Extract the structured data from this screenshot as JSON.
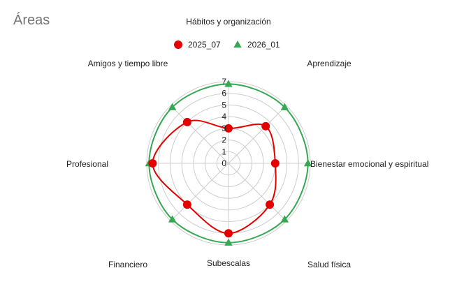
{
  "card": {
    "title": "Áreas"
  },
  "chart_data": {
    "type": "radar",
    "categories": [
      "Hábitos y organización",
      "Aprendizaje",
      "Bienestar emocional y espiritual",
      "Salud física",
      "Subescalas",
      "Financiero",
      "Profesional",
      "Amigos y tiempo libre"
    ],
    "series": [
      {
        "name": "2025_07",
        "values": [
          3,
          4.5,
          4,
          5,
          6,
          5,
          6.5,
          5
        ],
        "color": "#e50000",
        "marker": "circle"
      },
      {
        "name": "2026_01",
        "values": [
          6.8,
          6.8,
          6.8,
          6.8,
          6.8,
          6.8,
          6.8,
          6.8
        ],
        "color": "#34a853",
        "marker": "triangle"
      }
    ],
    "r_ticks": [
      "0",
      "1",
      "2",
      "3",
      "4",
      "5",
      "6",
      "7"
    ],
    "r_range": [
      0,
      7
    ],
    "legend_position": "top",
    "grid": true
  }
}
